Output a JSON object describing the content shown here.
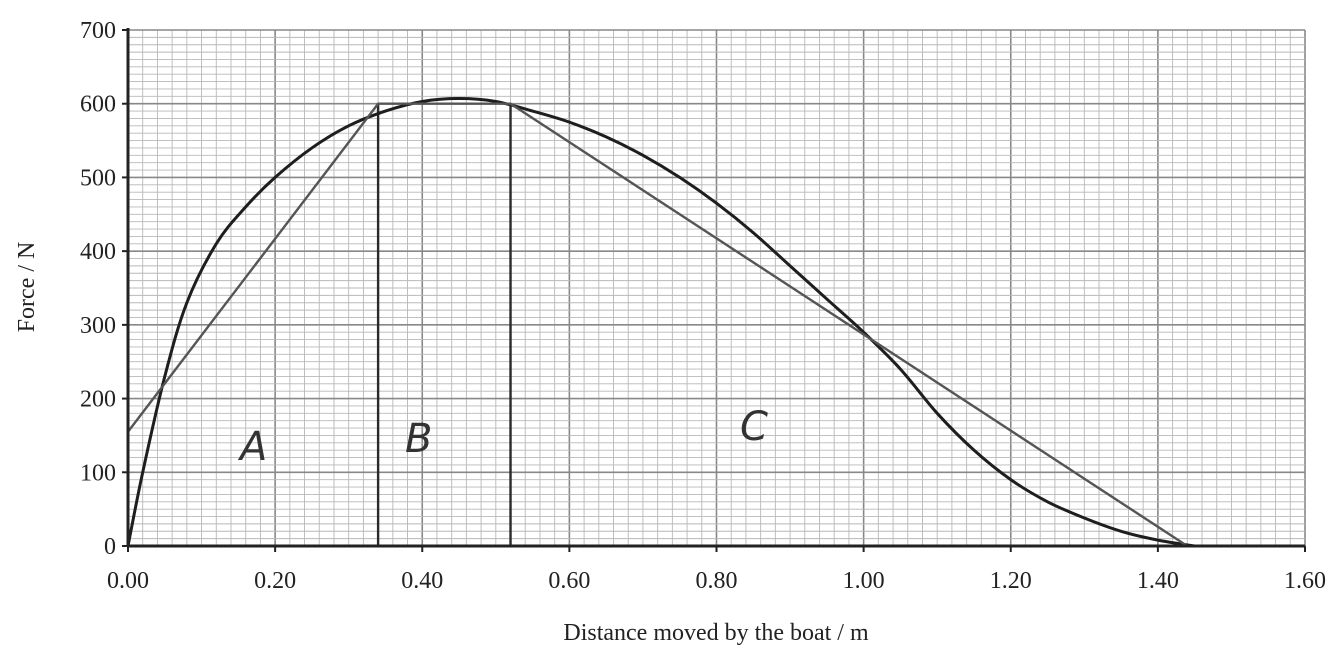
{
  "chart_data": {
    "type": "line",
    "title": "",
    "xlabel": "Distance moved by the boat / m",
    "ylabel": "Force / N",
    "xlim": [
      0,
      1.6
    ],
    "ylim": [
      0,
      700
    ],
    "grid": true,
    "x_ticks": [
      "0.00",
      "0.20",
      "0.40",
      "0.60",
      "0.80",
      "1.00",
      "1.20",
      "1.40",
      "1.60"
    ],
    "y_ticks": [
      "0",
      "100",
      "200",
      "300",
      "400",
      "500",
      "600",
      "700"
    ],
    "series": [
      {
        "style": "curve",
        "x": [
          0.0,
          0.02,
          0.05,
          0.08,
          0.12,
          0.16,
          0.2,
          0.25,
          0.3,
          0.35,
          0.4,
          0.45,
          0.5,
          0.55,
          0.6,
          0.65,
          0.7,
          0.75,
          0.8,
          0.85,
          0.9,
          0.95,
          1.0,
          1.05,
          1.1,
          1.15,
          1.2,
          1.25,
          1.3,
          1.35,
          1.4,
          1.45
        ],
        "y": [
          0,
          100,
          230,
          330,
          410,
          460,
          500,
          540,
          570,
          590,
          603,
          607,
          603,
          590,
          575,
          555,
          530,
          500,
          465,
          425,
          380,
          335,
          290,
          240,
          180,
          130,
          90,
          60,
          38,
          20,
          8,
          0
        ]
      },
      {
        "style": "segments",
        "x": [
          0.0,
          0.34,
          0.52,
          1.44
        ],
        "y": [
          155,
          600,
          600,
          0
        ]
      }
    ],
    "vertical_lines": [
      0.34,
      0.52
    ],
    "annotations": [
      "A",
      "B",
      "C"
    ]
  }
}
